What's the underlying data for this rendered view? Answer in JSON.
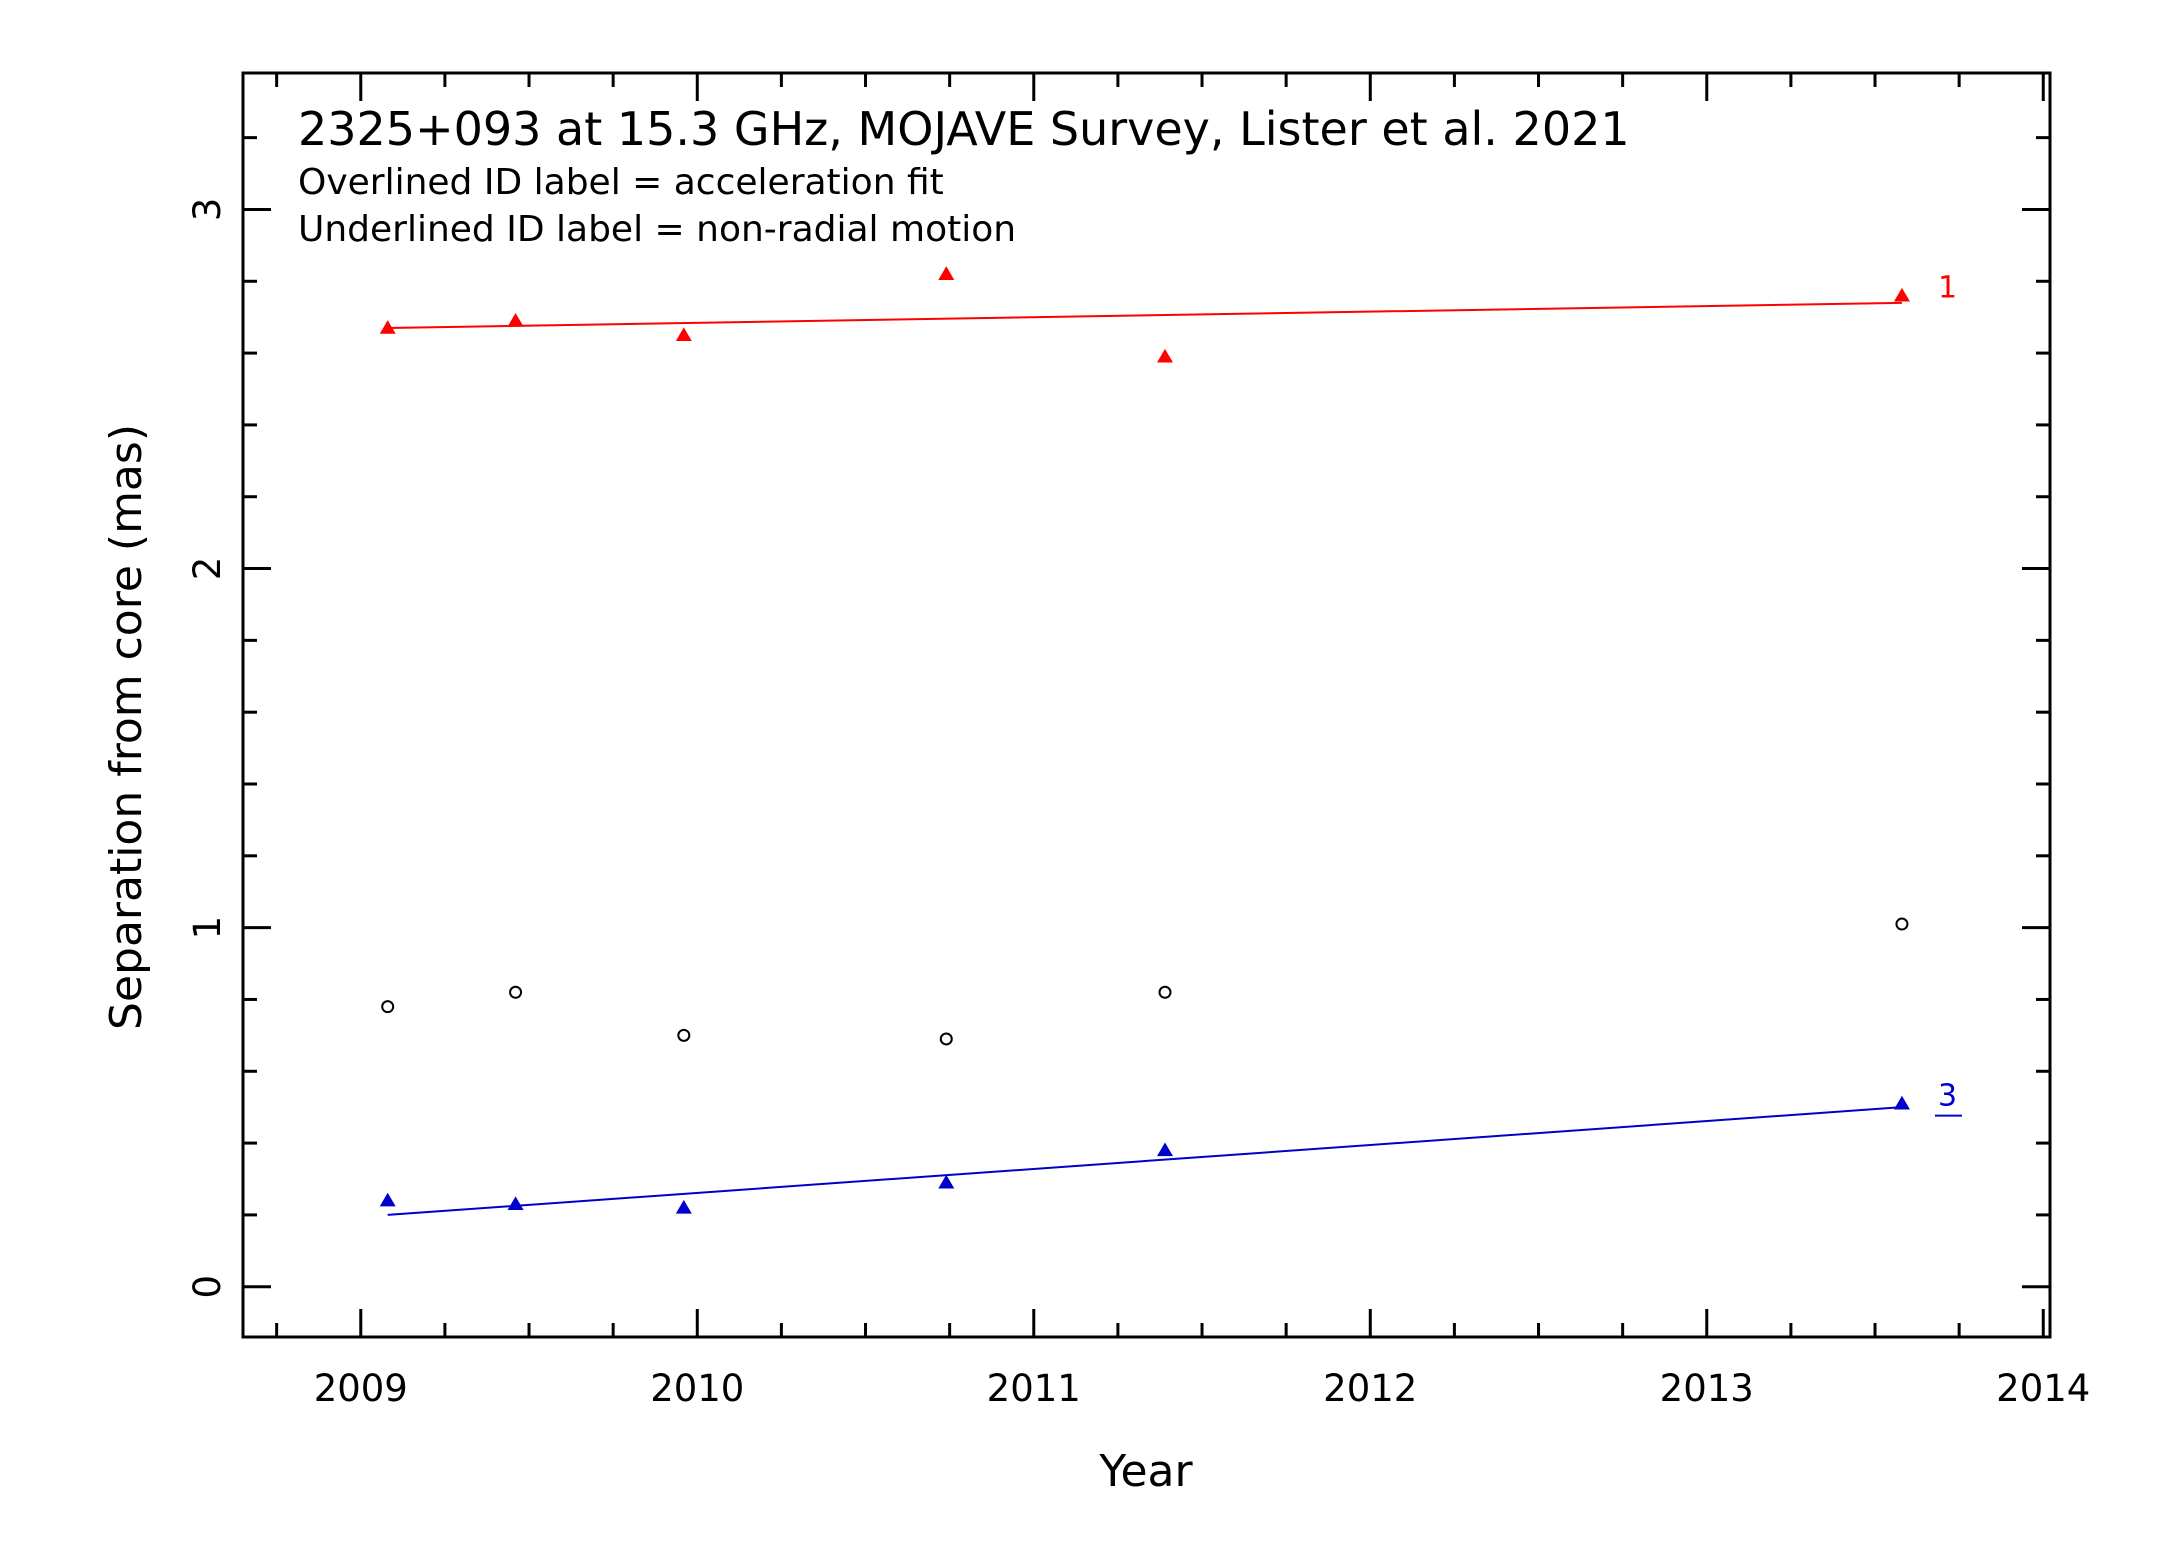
{
  "chart_data": {
    "type": "scatter",
    "title": "2325+093 at 15.3 GHz, MOJAVE Survey, Lister et al. 2021",
    "annotations": [
      "Overlined ID label = acceleration fit",
      "Underlined ID label = non-radial motion"
    ],
    "xlabel": "Year",
    "ylabel": "Separation from core (mas)",
    "xlim": [
      2008.65,
      2014.02
    ],
    "ylim": [
      -0.14,
      3.38
    ],
    "xticks": [
      "2009",
      "2010",
      "2011",
      "2012",
      "2013",
      "2014"
    ],
    "yticks": [
      "0",
      "1",
      "2",
      "3"
    ],
    "series": [
      {
        "label": "1",
        "marker": "triangle",
        "color": "#ff0000",
        "x": [
          2009.08,
          2009.46,
          2009.96,
          2010.74,
          2011.39,
          2013.58
        ],
        "y": [
          2.67,
          2.69,
          2.65,
          2.82,
          2.59,
          2.76
        ],
        "fit": {
          "x": [
            2009.08,
            2013.58
          ],
          "y": [
            2.67,
            2.74
          ]
        },
        "label_style": "plain"
      },
      {
        "label": "3",
        "marker": "triangle",
        "color": "#0000cc",
        "x": [
          2009.08,
          2009.46,
          2009.96,
          2010.74,
          2011.39,
          2013.58
        ],
        "y": [
          0.24,
          0.23,
          0.22,
          0.29,
          0.38,
          0.51
        ],
        "fit": {
          "x": [
            2009.08,
            2013.58
          ],
          "y": [
            0.2,
            0.5
          ]
        },
        "label_style": "underlined"
      },
      {
        "marker": "circle",
        "color": "#000000",
        "x": [
          2009.08,
          2009.46,
          2009.96,
          2010.74,
          2011.39,
          2013.58
        ],
        "y": [
          0.78,
          0.82,
          0.7,
          0.69,
          0.82,
          1.01
        ]
      }
    ],
    "grid": false,
    "legend": "none"
  }
}
